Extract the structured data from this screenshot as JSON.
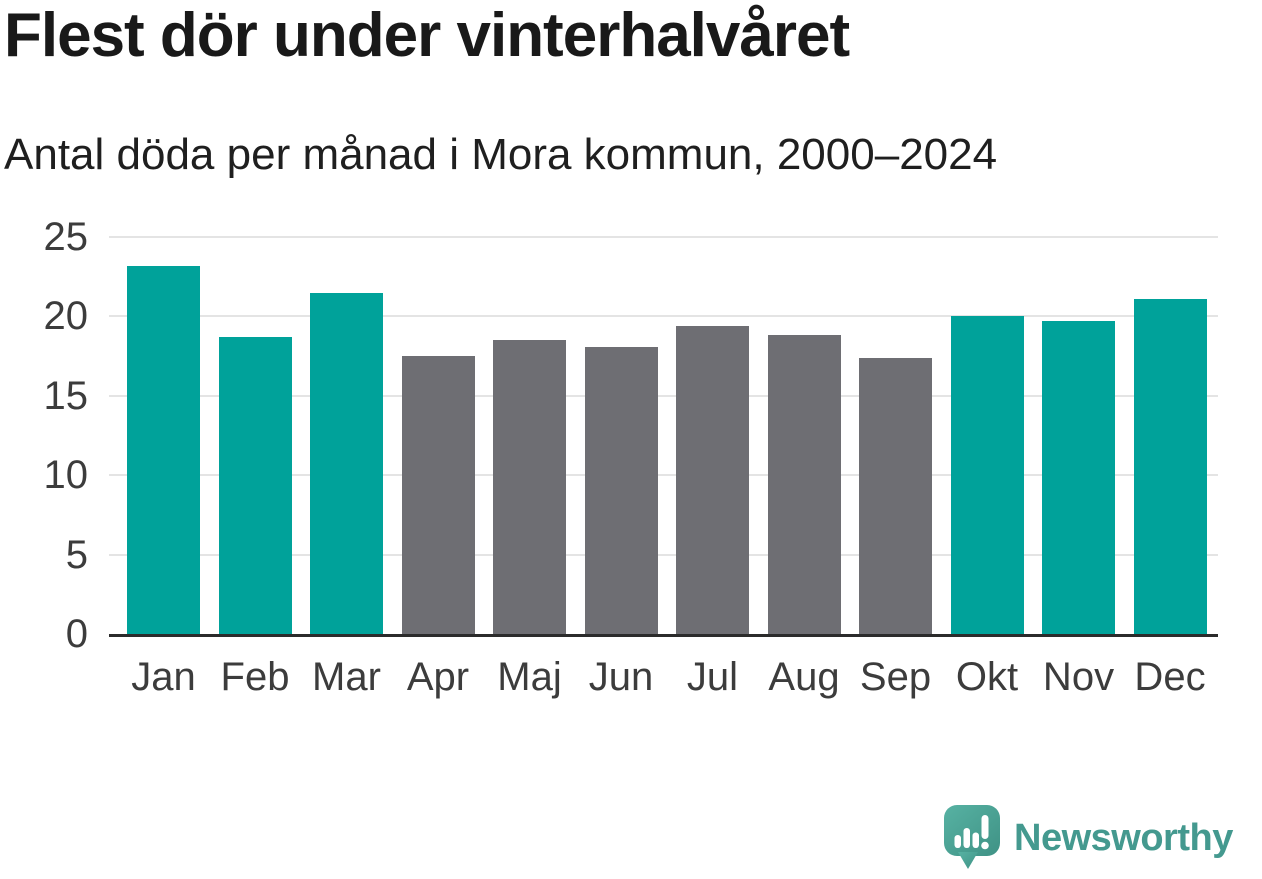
{
  "header": {
    "title": "Flest dör under vinterhalvåret",
    "subtitle": "Antal döda per månad i Mora kommun, 2000–2024"
  },
  "chart_data": {
    "type": "bar",
    "title": "Flest dör under vinterhalvåret",
    "subtitle": "Antal döda per månad i Mora kommun, 2000–2024",
    "categories": [
      "Jan",
      "Feb",
      "Mar",
      "Apr",
      "Maj",
      "Jun",
      "Jul",
      "Aug",
      "Sep",
      "Okt",
      "Nov",
      "Dec"
    ],
    "values": [
      23.2,
      18.7,
      21.5,
      17.5,
      18.5,
      18.1,
      19.4,
      18.8,
      17.4,
      20.0,
      19.7,
      21.1
    ],
    "bar_colors": [
      "#00a29a",
      "#00a29a",
      "#00a29a",
      "#6e6e73",
      "#6e6e73",
      "#6e6e73",
      "#6e6e73",
      "#6e6e73",
      "#6e6e73",
      "#00a29a",
      "#00a29a",
      "#00a29a"
    ],
    "highlight_color": "#00a29a",
    "muted_color": "#6e6e73",
    "xlabel": "",
    "ylabel": "",
    "ylim": [
      0,
      25
    ],
    "yticks": [
      0,
      5,
      10,
      15,
      20,
      25
    ],
    "grid": true,
    "gridline_color": "#e4e4e4",
    "axis_line_color": "#2b2b2b",
    "tick_label_color": "#3c3c3c",
    "legend": "none"
  },
  "branding": {
    "wordmark": "Newsworthy",
    "wordmark_color": "#44998f",
    "icon": "bar-chart-speech-bubble-icon"
  }
}
